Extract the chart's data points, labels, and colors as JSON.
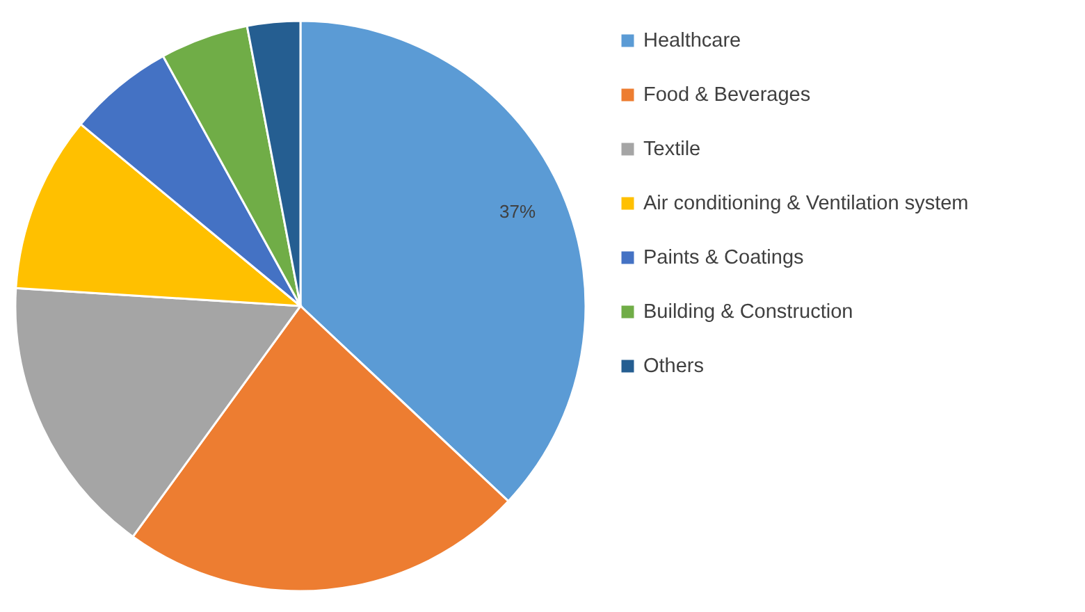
{
  "chart_data": {
    "type": "pie",
    "categories": [
      "Healthcare",
      "Food & Beverages",
      "Textile",
      "Air conditioning & Ventilation system",
      "Paints & Coatings",
      "Building & Construction",
      "Others"
    ],
    "values": [
      37,
      23,
      16,
      10,
      6,
      5,
      3
    ],
    "colors": [
      "#5b9bd5",
      "#ed7d31",
      "#a5a5a5",
      "#ffc000",
      "#4472c4",
      "#70ad47",
      "#255e91"
    ],
    "value_labels": [
      "37%",
      null,
      null,
      null,
      null,
      null,
      null
    ],
    "legend": "right"
  }
}
